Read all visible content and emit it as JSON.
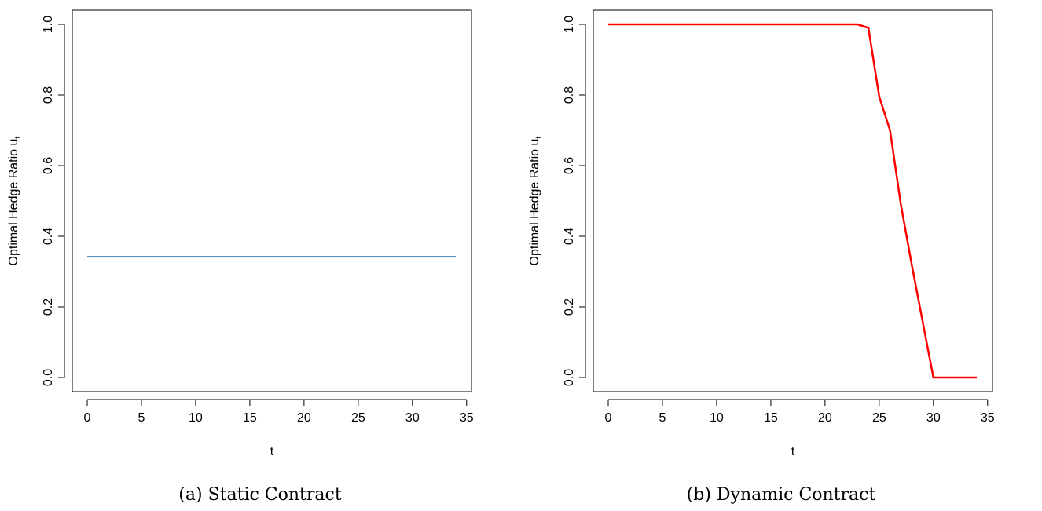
{
  "chart_data": [
    {
      "type": "line",
      "caption": "(a) Static Contract",
      "xlabel": "t",
      "ylabel": "Optimal Hedge Ratio u",
      "ylabel_subscript": "t",
      "xlim": [
        0,
        35
      ],
      "ylim": [
        0,
        1
      ],
      "x_ticks": [
        0,
        5,
        10,
        15,
        20,
        25,
        30,
        35
      ],
      "y_ticks": [
        "0.0",
        "0.2",
        "0.4",
        "0.6",
        "0.8",
        "1.0"
      ],
      "series": [
        {
          "color": "#4682B4",
          "x": [
            0,
            34
          ],
          "y": [
            0.342,
            0.342
          ]
        }
      ]
    },
    {
      "type": "line",
      "caption": "(b) Dynamic Contract",
      "xlabel": "t",
      "ylabel": "Optimal Hedge Ratio u",
      "ylabel_subscript": "t",
      "xlim": [
        0,
        35
      ],
      "ylim": [
        0,
        1
      ],
      "x_ticks": [
        0,
        5,
        10,
        15,
        20,
        25,
        30,
        35
      ],
      "y_ticks": [
        "0.0",
        "0.2",
        "0.4",
        "0.6",
        "0.8",
        "1.0"
      ],
      "series": [
        {
          "color": "#FF0000",
          "x": [
            0,
            23,
            24,
            25,
            26,
            27,
            28,
            29,
            30,
            31,
            32,
            33,
            34
          ],
          "y": [
            1.0,
            1.0,
            0.99,
            0.795,
            0.7,
            0.49,
            0.32,
            0.16,
            0.0,
            0.0,
            0.0,
            0.0,
            0.0
          ]
        }
      ]
    }
  ]
}
